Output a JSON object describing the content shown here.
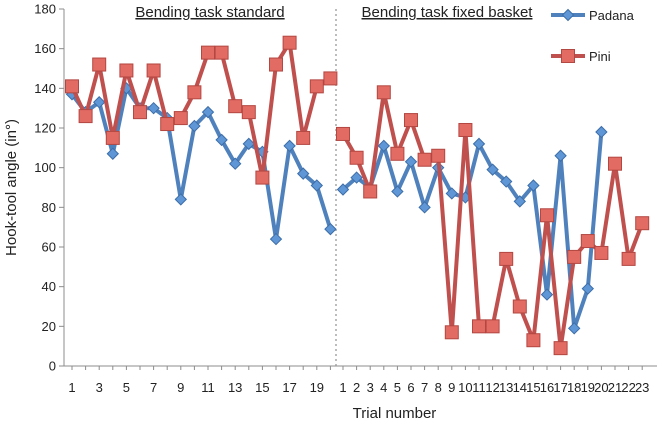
{
  "chart_data": {
    "type": "line",
    "xlabel": "Trial number",
    "ylabel": "Hook-tool angle (in°)",
    "ylim": [
      0,
      180
    ],
    "yticks": [
      0,
      20,
      40,
      60,
      80,
      100,
      120,
      140,
      160,
      180
    ],
    "grid": false,
    "legend_position": "top-right",
    "sections": [
      {
        "label": "Bending task standard",
        "trials": 20,
        "tick_labels": [
          "1",
          "3",
          "5",
          "7",
          "9",
          "11",
          "13",
          "15",
          "17",
          "19"
        ],
        "tick_trials": [
          1,
          3,
          5,
          7,
          9,
          11,
          13,
          15,
          17,
          19
        ]
      },
      {
        "label": "Bending task fixed basket",
        "trials": 23,
        "tick_labels": [
          "1",
          "2",
          "3",
          "4",
          "5",
          "6",
          "7",
          "8",
          "9",
          "10",
          "11",
          "12",
          "13",
          "14",
          "15",
          "16",
          "17",
          "18",
          "19",
          "20",
          "21",
          "22",
          "23"
        ],
        "tick_trials": [
          1,
          2,
          3,
          4,
          5,
          6,
          7,
          8,
          9,
          10,
          11,
          12,
          13,
          14,
          15,
          16,
          17,
          18,
          19,
          20,
          21,
          22,
          23
        ]
      }
    ],
    "series": [
      {
        "name": "Padana",
        "color": "#4f81bd",
        "marker": "diamond",
        "standard": [
          137,
          128,
          133,
          107,
          140,
          130,
          130,
          125,
          84,
          121,
          128,
          114,
          102,
          112,
          108,
          64,
          111,
          97,
          91,
          69
        ],
        "fixed_basket": [
          89,
          95,
          90,
          111,
          88,
          103,
          80,
          100,
          87,
          85,
          112,
          99,
          93,
          83,
          91,
          36,
          106,
          19,
          39,
          118
        ]
      },
      {
        "name": "Pini",
        "color": "#c0504d",
        "marker": "square",
        "standard": [
          141,
          126,
          152,
          115,
          149,
          128,
          149,
          122,
          125,
          138,
          158,
          158,
          131,
          128,
          95,
          152,
          163,
          115,
          141,
          145
        ],
        "fixed_basket": [
          117,
          105,
          88,
          138,
          107,
          124,
          104,
          106,
          17,
          119,
          20,
          20,
          54,
          30,
          13,
          76,
          9,
          55,
          63,
          57,
          102,
          54,
          72
        ]
      }
    ]
  }
}
